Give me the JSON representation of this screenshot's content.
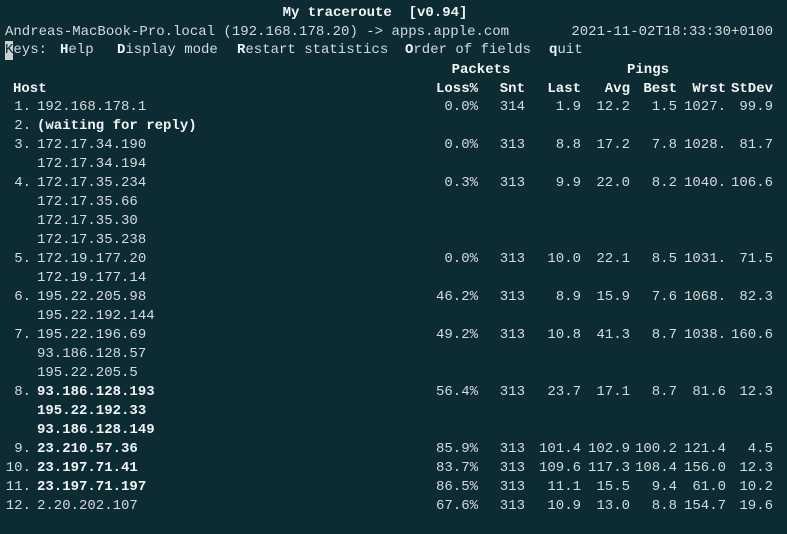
{
  "header": {
    "title": "My traceroute  [v0.94]",
    "route": "Andreas-MacBook-Pro.local (192.168.178.20) -> apps.apple.com",
    "timestamp": "2021-11-02T18:33:30+0100"
  },
  "keys": {
    "cursor": "K",
    "label": "eys:",
    "items": [
      {
        "key": "H",
        "rest": "elp"
      },
      {
        "key": "D",
        "rest": "isplay mode"
      },
      {
        "key": "R",
        "rest": "estart statistics"
      },
      {
        "key": "O",
        "rest": "rder of fields"
      },
      {
        "key": "q",
        "rest": "uit"
      }
    ]
  },
  "table": {
    "groups": [
      "Packets",
      "Pings"
    ],
    "host_header": "Host",
    "columns": [
      "Loss%",
      "Snt",
      "Last",
      "Avg",
      "Best",
      "Wrst",
      "StDev"
    ],
    "rows": [
      {
        "num": "1.",
        "hosts": [
          "192.168.178.1"
        ],
        "bold": false,
        "stats": [
          "0.0%",
          "314",
          "1.9",
          "12.2",
          "1.5",
          "1027.",
          "99.9"
        ]
      },
      {
        "num": "2.",
        "hosts": [
          "(waiting for reply)"
        ],
        "bold": true,
        "stats": []
      },
      {
        "num": "3.",
        "hosts": [
          "172.17.34.190",
          "172.17.34.194"
        ],
        "bold": false,
        "stats": [
          "0.0%",
          "313",
          "8.8",
          "17.2",
          "7.8",
          "1028.",
          "81.7"
        ]
      },
      {
        "num": "4.",
        "hosts": [
          "172.17.35.234",
          "172.17.35.66",
          "172.17.35.30",
          "172.17.35.238"
        ],
        "bold": false,
        "stats": [
          "0.3%",
          "313",
          "9.9",
          "22.0",
          "8.2",
          "1040.",
          "106.6"
        ]
      },
      {
        "num": "5.",
        "hosts": [
          "172.19.177.20",
          "172.19.177.14"
        ],
        "bold": false,
        "stats": [
          "0.0%",
          "313",
          "10.0",
          "22.1",
          "8.5",
          "1031.",
          "71.5"
        ]
      },
      {
        "num": "6.",
        "hosts": [
          "195.22.205.98",
          "195.22.192.144"
        ],
        "bold": false,
        "stats": [
          "46.2%",
          "313",
          "8.9",
          "15.9",
          "7.6",
          "1068.",
          "82.3"
        ]
      },
      {
        "num": "7.",
        "hosts": [
          "195.22.196.69",
          "93.186.128.57",
          "195.22.205.5"
        ],
        "bold": false,
        "stats": [
          "49.2%",
          "313",
          "10.8",
          "41.3",
          "8.7",
          "1038.",
          "160.6"
        ]
      },
      {
        "num": "8.",
        "hosts": [
          "93.186.128.193",
          "195.22.192.33",
          "93.186.128.149"
        ],
        "bold": true,
        "stats": [
          "56.4%",
          "313",
          "23.7",
          "17.1",
          "8.7",
          "81.6",
          "12.3"
        ]
      },
      {
        "num": "9.",
        "hosts": [
          "23.210.57.36"
        ],
        "bold": true,
        "stats": [
          "85.9%",
          "313",
          "101.4",
          "102.9",
          "100.2",
          "121.4",
          "4.5"
        ]
      },
      {
        "num": "10.",
        "hosts": [
          "23.197.71.41"
        ],
        "bold": true,
        "stats": [
          "83.7%",
          "313",
          "109.6",
          "117.3",
          "108.4",
          "156.0",
          "12.3"
        ]
      },
      {
        "num": "11.",
        "hosts": [
          "23.197.71.197"
        ],
        "bold": true,
        "stats": [
          "86.5%",
          "313",
          "11.1",
          "15.5",
          "9.4",
          "61.0",
          "10.2"
        ]
      },
      {
        "num": "12.",
        "hosts": [
          "2.20.202.107"
        ],
        "bold": false,
        "stats": [
          "67.6%",
          "313",
          "10.9",
          "13.0",
          "8.8",
          "154.7",
          "19.6"
        ]
      }
    ]
  }
}
